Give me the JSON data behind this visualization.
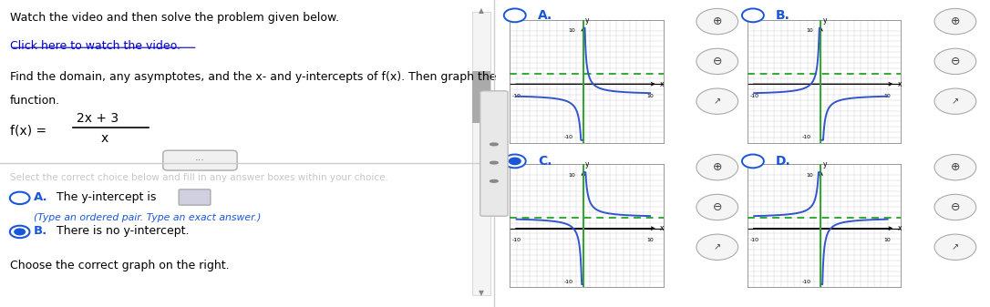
{
  "title_text": "Watch the video and then solve the problem given below.",
  "link_text": "Click here to watch the video.",
  "problem_line1": "Find the domain, any asymptotes, and the x- and y-intercepts of f(x). Then graph the",
  "problem_line2": "function.",
  "numerator": "2x + 3",
  "denominator": "x",
  "choice_A_text": "The y-intercept is",
  "choice_B_text": "There is no y-intercept.",
  "choice_B_selected": true,
  "bottom_text": "Choose the correct graph on the right.",
  "graphs": [
    {
      "label": "A.",
      "selected": false
    },
    {
      "label": "B.",
      "selected": false
    },
    {
      "label": "C.",
      "selected": true
    },
    {
      "label": "D.",
      "selected": false
    }
  ],
  "bg_color": "#ffffff",
  "text_color": "#000000",
  "link_color": "#0000cc",
  "blue_label_color": "#1a56db",
  "graph_curve_color": "#3355cc",
  "graph_vasymptote_color": "#33aa33",
  "graph_hasymptote_color": "#33aa33",
  "selected_radio_color": "#1a56db",
  "radio_border_color": "#1a56db",
  "input_box_color": "#d0d0e0",
  "curve_types": [
    "A",
    "B",
    "C",
    "D"
  ]
}
